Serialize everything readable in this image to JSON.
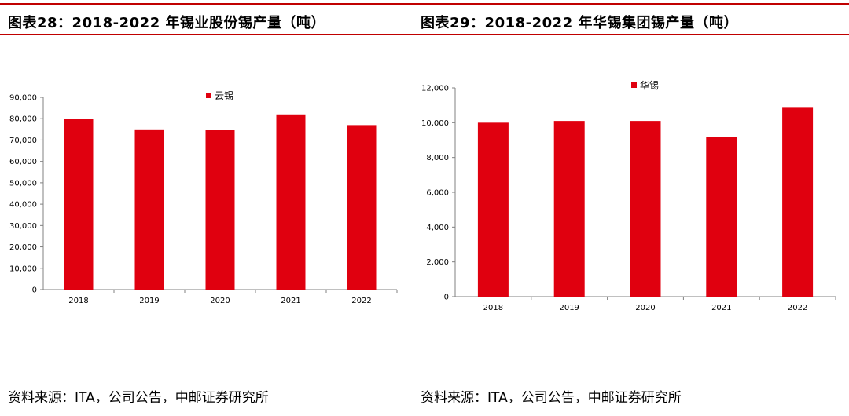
{
  "panels": [
    {
      "title": "图表28：2018-2022 年锡业股份锡产量（吨）",
      "source": "资料来源：ITA，公司公告，中邮证券研究所"
    },
    {
      "title": "图表29：2018-2022 年华锡集团锡产量（吨）",
      "source": "资料来源：ITA，公司公告，中邮证券研究所"
    }
  ],
  "colors": {
    "accent": "#c00000",
    "bar": "#e0000f",
    "axis": "#808080"
  },
  "chart_data": [
    {
      "type": "bar",
      "title": "",
      "categories": [
        "2018",
        "2019",
        "2020",
        "2021",
        "2022"
      ],
      "series": [
        {
          "name": "云锡",
          "values": [
            80000,
            75000,
            74800,
            82000,
            77000
          ]
        }
      ],
      "ylim": [
        0,
        90000
      ],
      "yticks": [
        0,
        10000,
        20000,
        30000,
        40000,
        50000,
        60000,
        70000,
        80000,
        90000
      ],
      "ytick_labels": [
        "0",
        "10,000",
        "20,000",
        "30,000",
        "40,000",
        "50,000",
        "60,000",
        "70,000",
        "80,000",
        "90,000"
      ],
      "grid": false,
      "legend": "top-center"
    },
    {
      "type": "bar",
      "title": "",
      "categories": [
        "2018",
        "2019",
        "2020",
        "2021",
        "2022"
      ],
      "series": [
        {
          "name": "华锡",
          "values": [
            10000,
            10100,
            10100,
            9200,
            10900
          ]
        }
      ],
      "ylim": [
        0,
        12000
      ],
      "yticks": [
        0,
        2000,
        4000,
        6000,
        8000,
        10000,
        12000
      ],
      "ytick_labels": [
        "0",
        "2,000",
        "4,000",
        "6,000",
        "8,000",
        "10,000",
        "12,000"
      ],
      "grid": false,
      "legend": "top-center"
    }
  ]
}
